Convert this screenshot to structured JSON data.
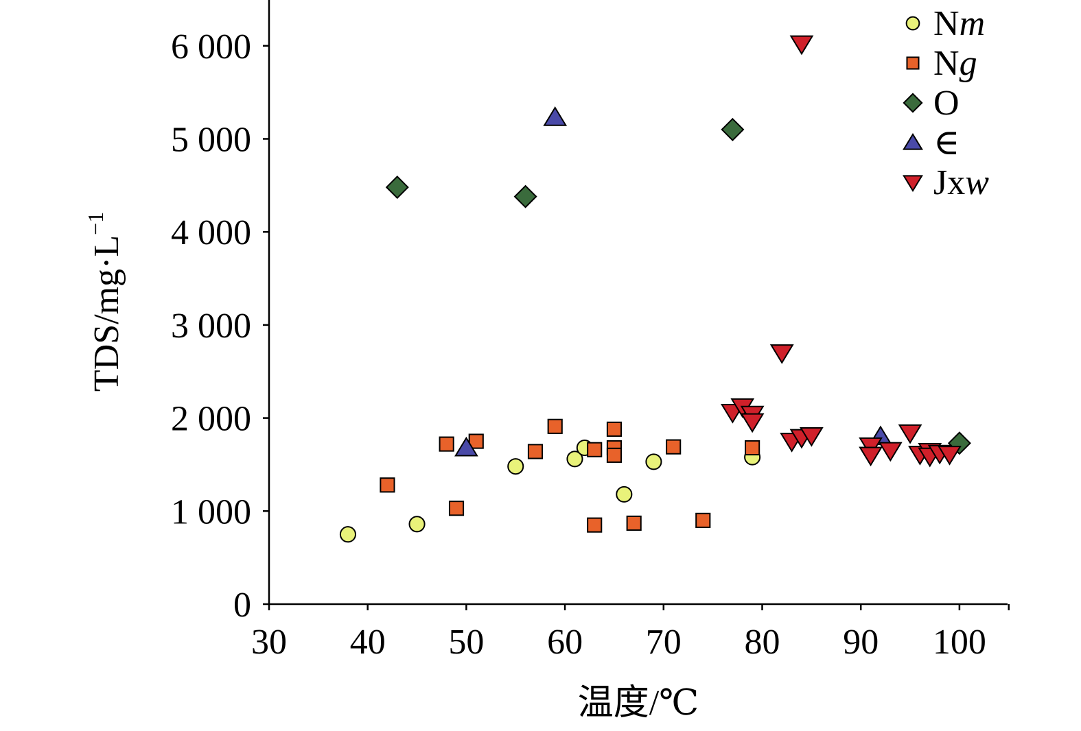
{
  "chart_data": {
    "type": "scatter",
    "title": "",
    "xlabel": "温度/℃",
    "ylabel": "TDS/mg·L",
    "ylabel_superscript": "−1",
    "xlim": [
      30,
      105
    ],
    "ylim": [
      0,
      6500
    ],
    "x_ticks": [
      30,
      40,
      50,
      60,
      70,
      80,
      90,
      100
    ],
    "y_ticks": [
      0,
      1000,
      2000,
      3000,
      4000,
      5000,
      6000
    ],
    "x_tick_labels": [
      "30",
      "40",
      "50",
      "60",
      "70",
      "80",
      "90",
      "100"
    ],
    "y_tick_labels": [
      "0",
      "1 000",
      "2 000",
      "3 000",
      "4 000",
      "5 000",
      "6 000"
    ],
    "grid": false,
    "legend_position": "top-right",
    "series": [
      {
        "name": "Nm",
        "name_base": "N",
        "name_italic": "m",
        "marker": "circle",
        "color": "#e9f27a",
        "points": [
          [
            38,
            750
          ],
          [
            45,
            860
          ],
          [
            55,
            1480
          ],
          [
            61,
            1560
          ],
          [
            62,
            1680
          ],
          [
            66,
            1180
          ],
          [
            69,
            1530
          ],
          [
            79,
            1580
          ]
        ]
      },
      {
        "name": "Ng",
        "name_base": "N",
        "name_italic": "g",
        "marker": "square",
        "color": "#e8622a",
        "points": [
          [
            42,
            1280
          ],
          [
            48,
            1720
          ],
          [
            49,
            1030
          ],
          [
            51,
            1750
          ],
          [
            57,
            1640
          ],
          [
            59,
            1910
          ],
          [
            63,
            1660
          ],
          [
            63,
            850
          ],
          [
            65,
            1880
          ],
          [
            65,
            1680
          ],
          [
            65,
            1600
          ],
          [
            67,
            870
          ],
          [
            71,
            1690
          ],
          [
            74,
            900
          ],
          [
            79,
            1680
          ]
        ]
      },
      {
        "name": "O",
        "name_base": "O",
        "name_italic": "",
        "marker": "diamond",
        "color": "#3a6b3c",
        "points": [
          [
            43,
            4480
          ],
          [
            56,
            4380
          ],
          [
            77,
            5100
          ],
          [
            100,
            1730
          ]
        ]
      },
      {
        "name": "∈",
        "name_base": "∈",
        "name_italic": "",
        "marker": "triangle-up",
        "color": "#4a4aa8",
        "points": [
          [
            59,
            5230
          ],
          [
            50,
            1680
          ],
          [
            92,
            1800
          ]
        ]
      },
      {
        "name": "Jxw",
        "name_base": "Jx",
        "name_italic": "w",
        "marker": "triangle-down",
        "color": "#d0202a",
        "points": [
          [
            84,
            6020
          ],
          [
            82,
            2700
          ],
          [
            77,
            2060
          ],
          [
            78,
            2120
          ],
          [
            79,
            2040
          ],
          [
            79,
            1960
          ],
          [
            83,
            1750
          ],
          [
            84,
            1790
          ],
          [
            85,
            1810
          ],
          [
            91,
            1700
          ],
          [
            91,
            1600
          ],
          [
            93,
            1650
          ],
          [
            95,
            1840
          ],
          [
            96,
            1610
          ],
          [
            97,
            1640
          ],
          [
            97,
            1590
          ],
          [
            98,
            1620
          ],
          [
            99,
            1610
          ]
        ]
      }
    ]
  }
}
